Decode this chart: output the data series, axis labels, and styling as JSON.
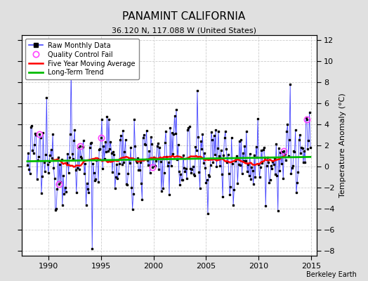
{
  "title": "PANAMINT CALIFORNIA",
  "subtitle": "36.120 N, 117.088 W (United States)",
  "credit": "Berkeley Earth",
  "ylabel": "Temperature Anomaly (°C)",
  "xlim": [
    1987.5,
    2015.5
  ],
  "ylim": [
    -8.5,
    12.5
  ],
  "yticks": [
    -8,
    -6,
    -4,
    -2,
    0,
    2,
    4,
    6,
    8,
    10,
    12
  ],
  "xticks": [
    1990,
    1995,
    2000,
    2005,
    2010,
    2015
  ],
  "fig_bg": "#e0e0e0",
  "axes_bg": "#ffffff",
  "raw_color": "#4444ff",
  "ma_color": "#ff0000",
  "trend_color": "#00bb00",
  "qc_color": "#ff44ff",
  "seed": 12345,
  "start_year": 1988.0,
  "n_years": 27
}
